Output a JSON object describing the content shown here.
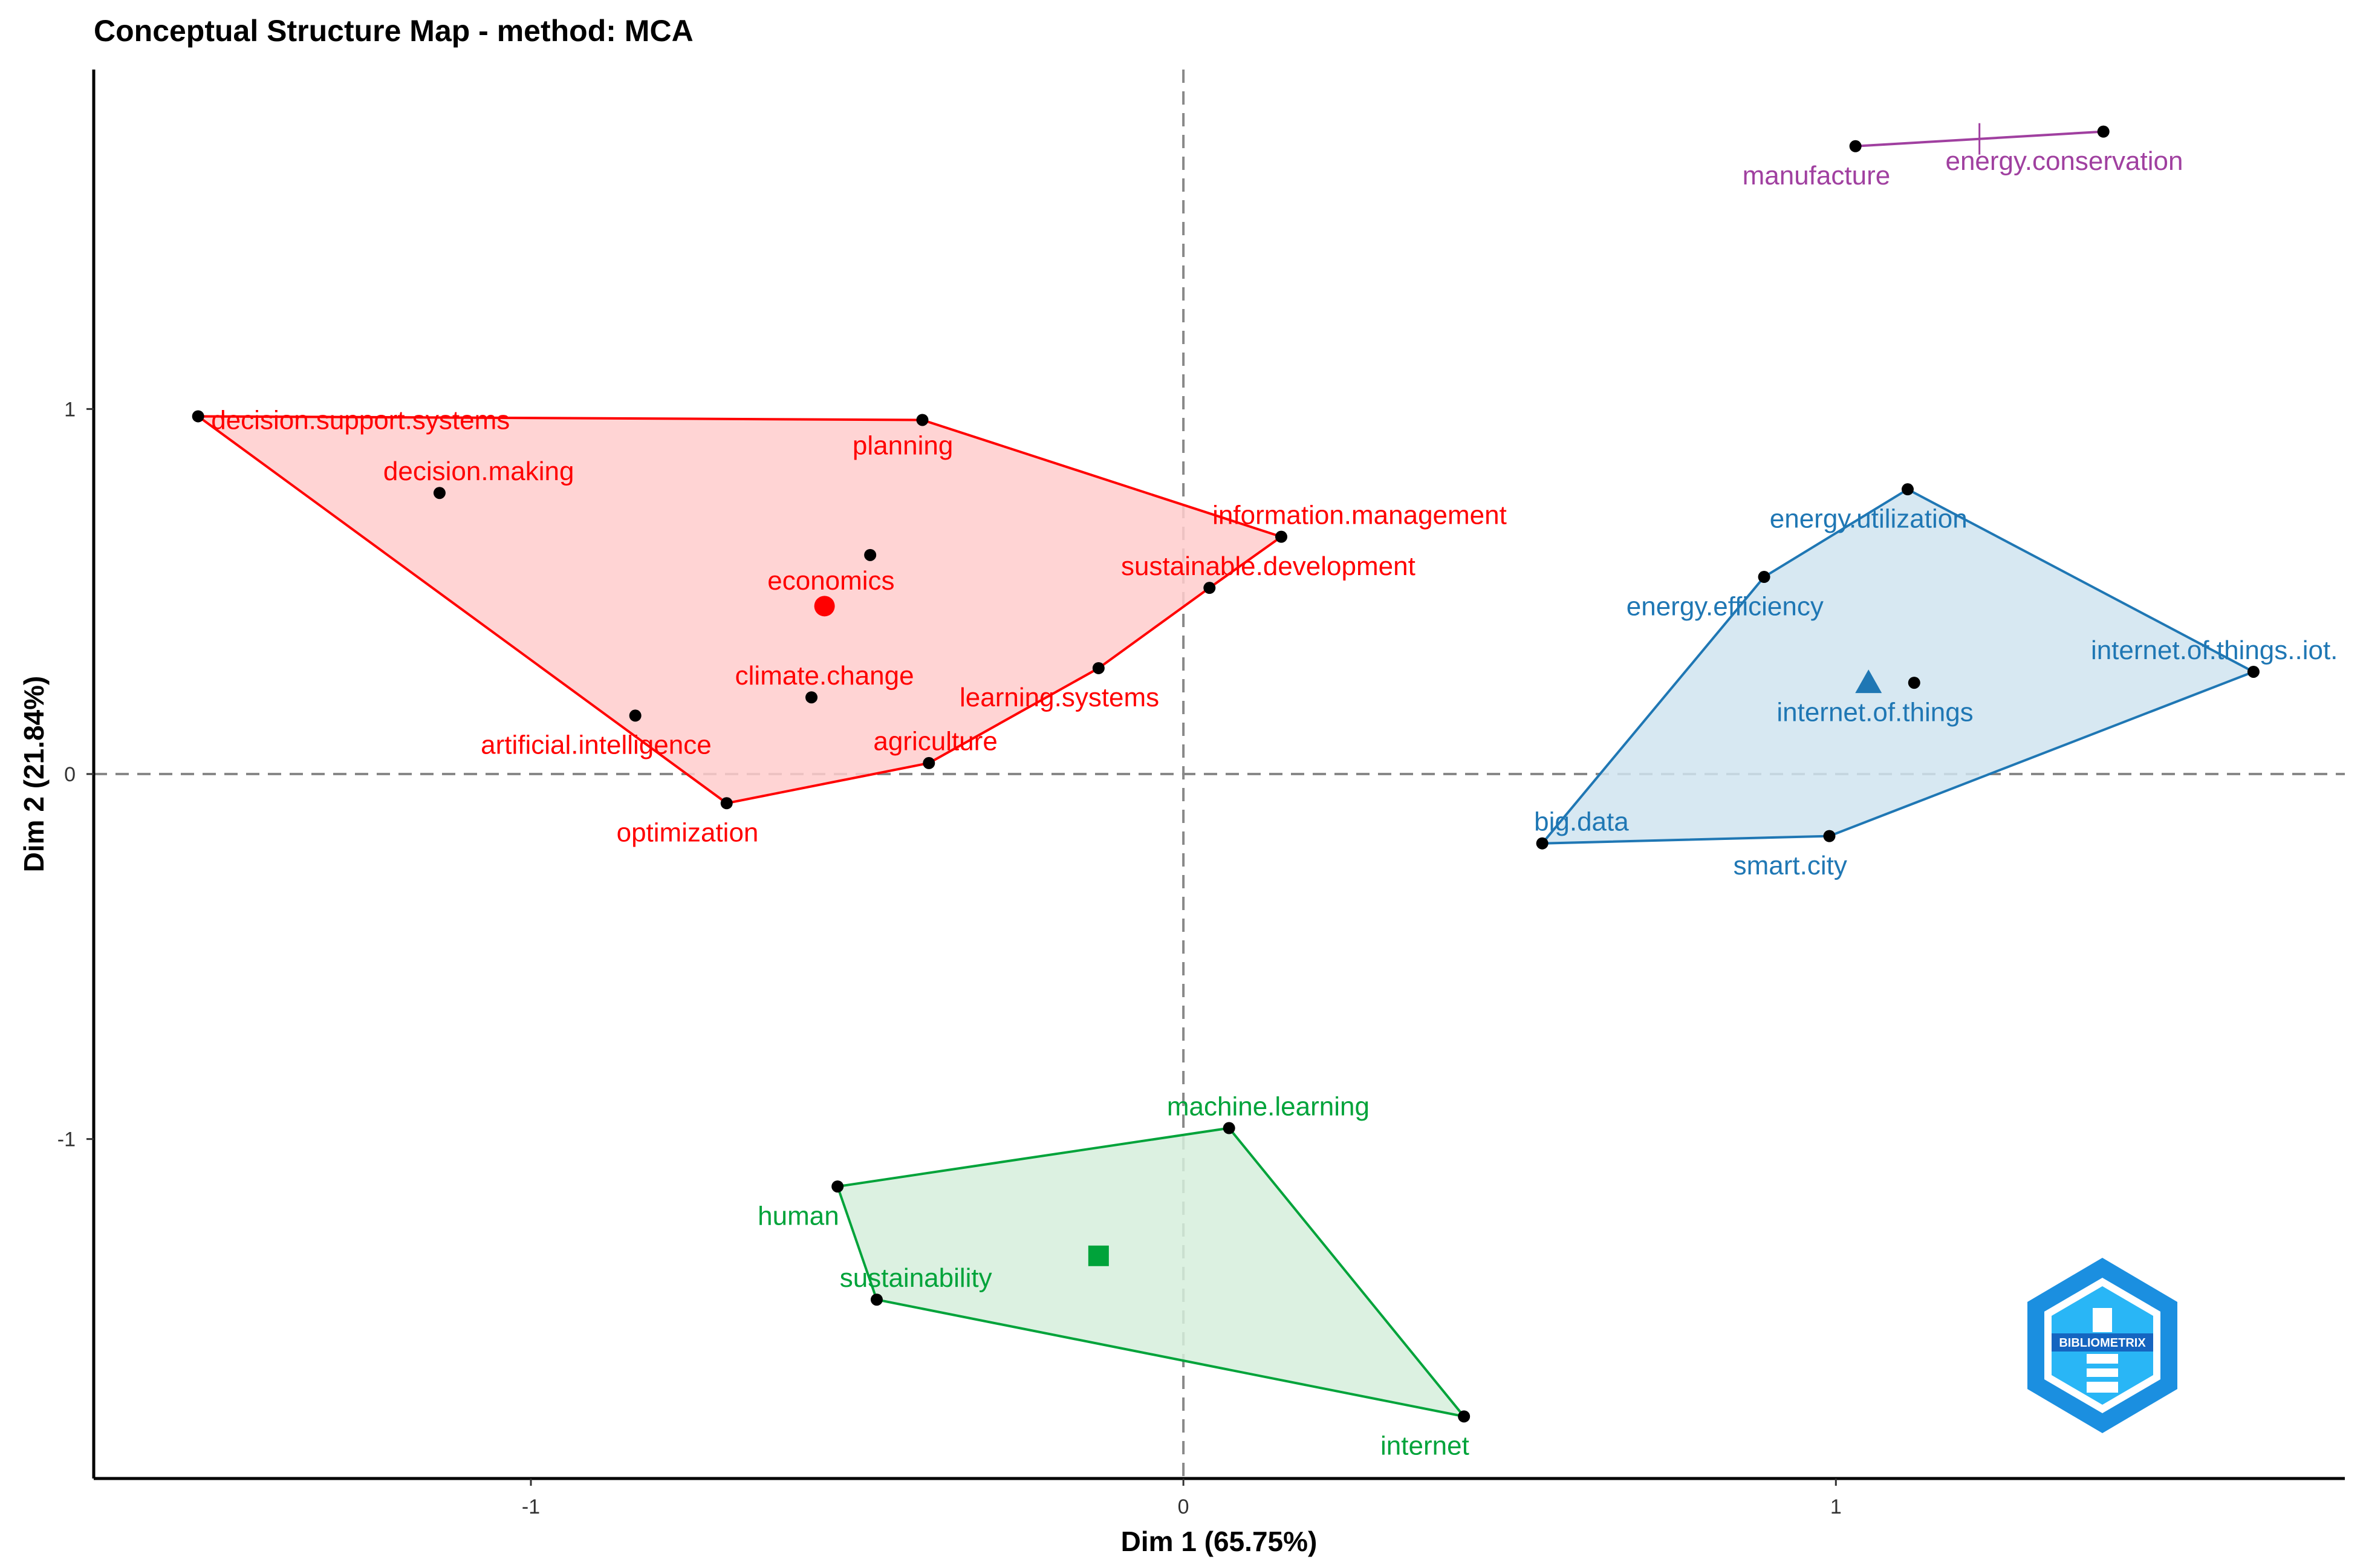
{
  "chart_data": {
    "type": "scatter",
    "title": "Conceptual Structure Map - method: MCA",
    "xlabel": "Dim 1 (65.75%)",
    "ylabel": "Dim 2 (21.84%)",
    "xlim": [
      -1.67,
      1.78
    ],
    "ylim": [
      -1.93,
      1.93
    ],
    "xticks": [
      {
        "v": -1,
        "label": "-1"
      },
      {
        "v": 0,
        "label": "0"
      },
      {
        "v": 1,
        "label": "1"
      }
    ],
    "yticks": [
      {
        "v": -1,
        "label": "-1"
      },
      {
        "v": 0,
        "label": "0"
      },
      {
        "v": 1,
        "label": "1"
      }
    ],
    "reference_lines": {
      "x": 0,
      "y": 0
    },
    "clusters": [
      {
        "name": "cluster-1",
        "color": "#ff0000",
        "fill": "#ffcccc",
        "centroid": {
          "x": -0.55,
          "y": 0.46,
          "marker": "circle"
        },
        "hull": [
          "decision.support.systems",
          "planning",
          "information.management",
          "sustainable.development",
          "learning.systems",
          "agriculture",
          "optimization"
        ],
        "points": [
          {
            "label": "decision.support.systems",
            "x": -1.51,
            "y": 0.98,
            "dx": 0.02,
            "dy": -0.01,
            "anchor": "start"
          },
          {
            "label": "planning",
            "x": -0.4,
            "y": 0.97,
            "dx": -0.03,
            "dy": -0.07,
            "anchor": "middle"
          },
          {
            "label": "decision.making",
            "x": -1.14,
            "y": 0.77,
            "dx": 0.06,
            "dy": 0.06,
            "anchor": "middle"
          },
          {
            "label": "information.management",
            "x": 0.15,
            "y": 0.65,
            "dx": 0.12,
            "dy": 0.06,
            "anchor": "middle"
          },
          {
            "label": "economics",
            "x": -0.48,
            "y": 0.6,
            "dx": -0.06,
            "dy": -0.07,
            "anchor": "middle"
          },
          {
            "label": "sustainable.development",
            "x": 0.04,
            "y": 0.51,
            "dx": 0.09,
            "dy": 0.06,
            "anchor": "middle"
          },
          {
            "label": "climate.change",
            "x": -0.57,
            "y": 0.21,
            "dx": 0.02,
            "dy": 0.06,
            "anchor": "middle"
          },
          {
            "label": "learning.systems",
            "x": -0.13,
            "y": 0.29,
            "dx": -0.06,
            "dy": -0.08,
            "anchor": "middle"
          },
          {
            "label": "artificial.intelligence",
            "x": -0.84,
            "y": 0.16,
            "dx": -0.06,
            "dy": -0.08,
            "anchor": "middle"
          },
          {
            "label": "agriculture",
            "x": -0.39,
            "y": 0.03,
            "dx": 0.01,
            "dy": 0.06,
            "anchor": "middle"
          },
          {
            "label": "optimization",
            "x": -0.7,
            "y": -0.08,
            "dx": -0.06,
            "dy": -0.08,
            "anchor": "middle"
          }
        ]
      },
      {
        "name": "cluster-2",
        "color": "#1f77b4",
        "fill": "#d0e4f0",
        "centroid": {
          "x": 1.05,
          "y": 0.25,
          "marker": "triangle"
        },
        "hull": [
          "energy.utilization",
          "internet.of.things..iot.",
          "smart.city",
          "big.data",
          "energy.efficiency"
        ],
        "points": [
          {
            "label": "energy.utilization",
            "x": 1.11,
            "y": 0.78,
            "dx": -0.06,
            "dy": -0.08,
            "anchor": "middle"
          },
          {
            "label": "energy.efficiency",
            "x": 0.89,
            "y": 0.54,
            "dx": -0.06,
            "dy": -0.08,
            "anchor": "middle"
          },
          {
            "label": "internet.of.things..iot.",
            "x": 1.64,
            "y": 0.28,
            "dx": -0.06,
            "dy": 0.06,
            "anchor": "middle"
          },
          {
            "label": "internet.of.things",
            "x": 1.12,
            "y": 0.25,
            "dx": -0.06,
            "dy": -0.08,
            "anchor": "middle"
          },
          {
            "label": "big.data",
            "x": 0.55,
            "y": -0.19,
            "dx": 0.06,
            "dy": 0.06,
            "anchor": "middle"
          },
          {
            "label": "smart.city",
            "x": 0.99,
            "y": -0.17,
            "dx": -0.06,
            "dy": -0.08,
            "anchor": "middle"
          }
        ]
      },
      {
        "name": "cluster-3",
        "color": "#00a33a",
        "fill": "#d6eedc",
        "centroid": {
          "x": -0.13,
          "y": -1.32,
          "marker": "square"
        },
        "hull": [
          "machine.learning",
          "internet",
          "sustainability",
          "human"
        ],
        "points": [
          {
            "label": "machine.learning",
            "x": 0.07,
            "y": -0.97,
            "dx": 0.06,
            "dy": 0.06,
            "anchor": "middle"
          },
          {
            "label": "human",
            "x": -0.53,
            "y": -1.13,
            "dx": -0.06,
            "dy": -0.08,
            "anchor": "middle"
          },
          {
            "label": "sustainability",
            "x": -0.47,
            "y": -1.44,
            "dx": 0.06,
            "dy": 0.06,
            "anchor": "middle"
          },
          {
            "label": "internet",
            "x": 0.43,
            "y": -1.76,
            "dx": -0.06,
            "dy": -0.08,
            "anchor": "middle"
          }
        ]
      },
      {
        "name": "cluster-4",
        "color": "#a040a0",
        "fill": "none",
        "centroid": {
          "x": 1.22,
          "y": 1.74,
          "marker": "cross"
        },
        "hull": [
          "manufacture",
          "energy.conservation"
        ],
        "points": [
          {
            "label": "manufacture",
            "x": 1.03,
            "y": 1.72,
            "dx": -0.06,
            "dy": -0.08,
            "anchor": "middle"
          },
          {
            "label": "energy.conservation",
            "x": 1.41,
            "y": 1.76,
            "dx": -0.06,
            "dy": -0.08,
            "anchor": "middle"
          }
        ]
      }
    ]
  },
  "logo": {
    "name": "BIBLIOMETRIX",
    "color": "#1b8fe0"
  }
}
